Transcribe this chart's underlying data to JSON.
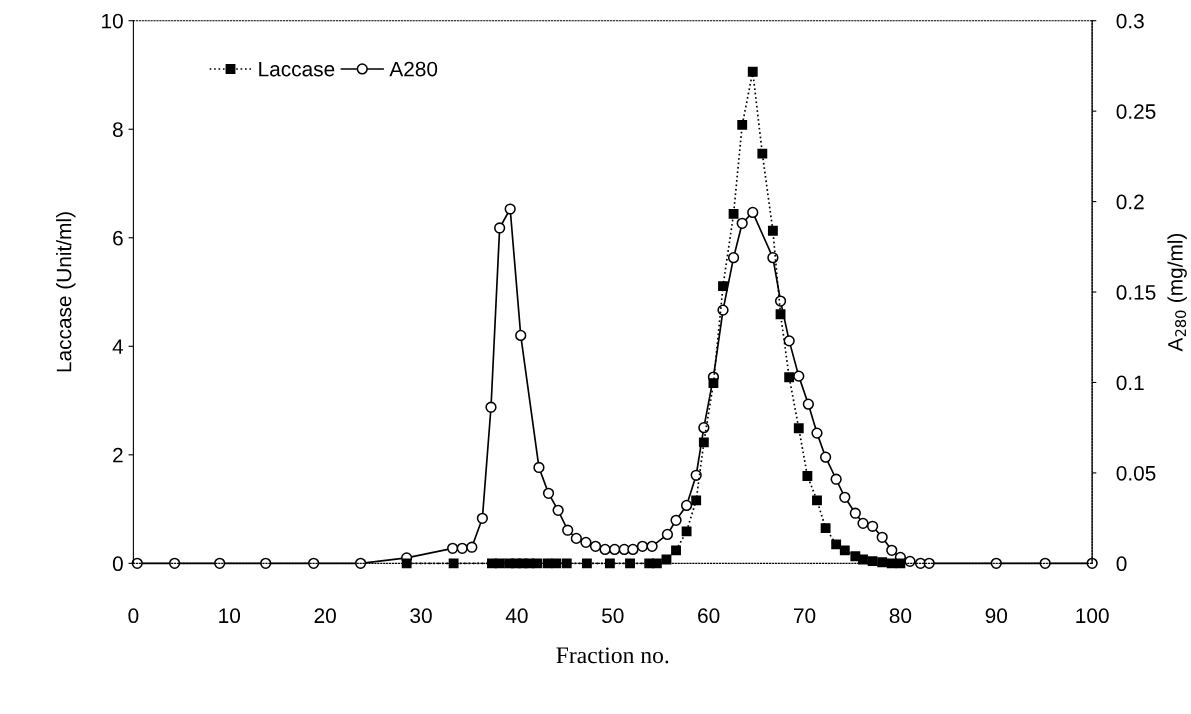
{
  "chart_data": {
    "type": "line",
    "xlabel": "Fraction no.",
    "ylabel": "Laccase (Unit/ml)",
    "y2label": "A$_{280}$ (mg/ml)",
    "xlim": [
      0,
      100
    ],
    "xticks": [
      0,
      10,
      20,
      30,
      40,
      50,
      60,
      70,
      80,
      90,
      100
    ],
    "ylim": [
      0,
      10
    ],
    "yticks": [
      0,
      2,
      4,
      6,
      8,
      10
    ],
    "y2lim": [
      0,
      0.3
    ],
    "y2ticks": [
      0,
      0.05,
      0.1,
      0.15,
      0.2,
      0.25,
      0.3
    ],
    "grid": false,
    "legend": "top left",
    "series": [
      {
        "name": "Laccase",
        "color": "#000000",
        "marker": "square",
        "line_style": "dotted",
        "x": [
          28.5,
          33.4,
          37.4,
          38.2,
          39.2,
          39.9,
          40.6,
          41.3,
          42.1,
          43.2,
          44.1,
          45.2,
          47.3,
          49.7,
          51.8,
          53.8,
          54.6,
          55.6,
          56.6,
          57.7,
          58.7,
          59.5,
          60.5,
          61.5,
          62.6,
          63.5,
          64.6,
          65.6,
          66.7,
          67.5,
          68.4,
          69.4,
          70.3,
          71.3,
          72.2,
          73.3,
          74.2,
          75.3,
          76.1,
          77.1,
          78.1,
          79.1,
          80.0
        ],
        "values": [
          0,
          0,
          0,
          0,
          0,
          0,
          0,
          0,
          0,
          0,
          0,
          0,
          0,
          0,
          0,
          0,
          0,
          0.07,
          0.24,
          0.59,
          1.16,
          2.23,
          3.32,
          5.11,
          6.44,
          8.08,
          9.06,
          7.55,
          6.13,
          4.59,
          3.43,
          2.49,
          1.61,
          1.16,
          0.65,
          0.35,
          0.24,
          0.13,
          0.07,
          0.04,
          0.02,
          0,
          0
        ]
      },
      {
        "name": "A280",
        "color": "#000000",
        "marker": "circle",
        "line_style": "solid",
        "axis": "y2",
        "x": [
          0.4,
          4.3,
          9.0,
          13.8,
          18.8,
          23.7,
          28.5,
          33.3,
          34.3,
          35.3,
          36.4,
          37.3,
          38.2,
          39.3,
          40.4,
          42.3,
          43.3,
          44.3,
          45.3,
          46.2,
          47.2,
          48.2,
          49.2,
          50.2,
          51.2,
          52.1,
          53.1,
          54.1,
          55.7,
          56.6,
          57.7,
          58.7,
          59.5,
          60.5,
          61.5,
          62.6,
          63.5,
          64.6,
          66.7,
          67.5,
          68.4,
          69.4,
          70.4,
          71.3,
          72.2,
          73.3,
          74.2,
          75.3,
          76.1,
          77.1,
          78.1,
          79.1,
          80.0,
          81.0,
          82.1,
          83.0,
          90.0,
          95.1,
          100
        ],
        "values": [
          0,
          0,
          0,
          0,
          0,
          0,
          0.003,
          0.0083,
          0.0083,
          0.0089,
          0.0249,
          0.0863,
          0.1854,
          0.1959,
          0.126,
          0.053,
          0.0387,
          0.0293,
          0.0183,
          0.0138,
          0.0116,
          0.0094,
          0.0077,
          0.0077,
          0.0077,
          0.0077,
          0.0094,
          0.0094,
          0.016,
          0.0238,
          0.032,
          0.0487,
          0.075,
          0.103,
          0.14,
          0.169,
          0.188,
          0.194,
          0.169,
          0.145,
          0.123,
          0.1035,
          0.088,
          0.072,
          0.0587,
          0.0465,
          0.0365,
          0.0277,
          0.0221,
          0.0205,
          0.0144,
          0.0072,
          0.0033,
          0.0011,
          0,
          0,
          0,
          0,
          0
        ]
      }
    ]
  }
}
